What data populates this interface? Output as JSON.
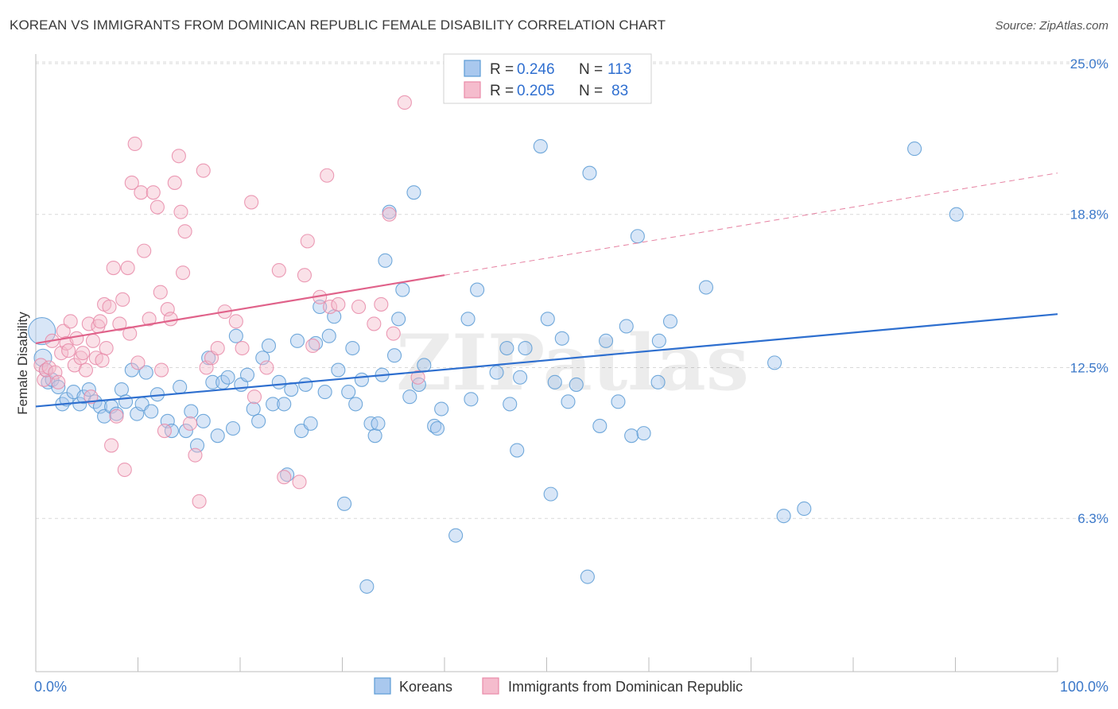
{
  "title": "KOREAN VS IMMIGRANTS FROM DOMINICAN REPUBLIC FEMALE DISABILITY CORRELATION CHART",
  "source": "Source: ZipAtlas.com",
  "watermark": "ZIPatlas",
  "legend_box": {
    "rows": [
      {
        "r_label": "R =",
        "r_value": "0.246",
        "n_label": "N =",
        "n_value": "113"
      },
      {
        "r_label": "R =",
        "r_value": "0.205",
        "n_label": "N =",
        "n_value": "83"
      }
    ]
  },
  "colors": {
    "korean": "#5b9bd5",
    "korean_fill": "#a9c8ee",
    "korean_line": "#2e6fcf",
    "dominican": "#e88aa8",
    "dominican_fill": "#f5bccd",
    "dominican_line": "#e0628a",
    "accent_text": "#3b78c9",
    "grid": "#d9d9d9"
  },
  "chart_data": {
    "type": "scatter",
    "title": "KOREAN VS IMMIGRANTS FROM DOMINICAN REPUBLIC FEMALE DISABILITY CORRELATION CHART",
    "xlabel": "",
    "ylabel": "Female Disability",
    "xlim": [
      0,
      100
    ],
    "ylim": [
      0,
      26
    ],
    "x_tick_labels": [
      "0.0%",
      "100.0%"
    ],
    "y_ticks": [
      6.3,
      12.5,
      18.8,
      25.0
    ],
    "y_tick_labels": [
      "6.3%",
      "12.5%",
      "18.8%",
      "25.0%"
    ],
    "grid": true,
    "legend_position": "bottom",
    "series": [
      {
        "name": "Koreans",
        "r": 0.246,
        "n": 113,
        "trend": {
          "x": [
            0,
            100
          ],
          "y": [
            10.9,
            14.7
          ]
        },
        "points": [
          [
            0.6,
            14.0
          ],
          [
            0.7,
            12.9
          ],
          [
            1.0,
            12.4
          ],
          [
            1.2,
            11.9
          ],
          [
            1.6,
            12.0
          ],
          [
            2.2,
            11.7
          ],
          [
            2.6,
            11.0
          ],
          [
            3.0,
            11.2
          ],
          [
            3.7,
            11.5
          ],
          [
            4.3,
            11.0
          ],
          [
            4.7,
            11.3
          ],
          [
            5.2,
            11.6
          ],
          [
            5.8,
            11.1
          ],
          [
            6.3,
            10.9
          ],
          [
            6.7,
            10.5
          ],
          [
            7.4,
            10.9
          ],
          [
            7.9,
            10.6
          ],
          [
            8.4,
            11.6
          ],
          [
            8.8,
            11.1
          ],
          [
            9.4,
            12.4
          ],
          [
            9.9,
            10.6
          ],
          [
            10.4,
            11.0
          ],
          [
            10.8,
            12.3
          ],
          [
            11.3,
            10.7
          ],
          [
            11.9,
            11.4
          ],
          [
            12.9,
            10.3
          ],
          [
            13.3,
            9.9
          ],
          [
            14.1,
            11.7
          ],
          [
            14.7,
            9.9
          ],
          [
            15.2,
            10.7
          ],
          [
            15.8,
            9.3
          ],
          [
            16.4,
            10.3
          ],
          [
            16.9,
            12.9
          ],
          [
            17.3,
            11.9
          ],
          [
            17.8,
            9.7
          ],
          [
            18.3,
            11.9
          ],
          [
            18.8,
            12.1
          ],
          [
            19.3,
            10.0
          ],
          [
            19.6,
            13.8
          ],
          [
            20.1,
            11.8
          ],
          [
            20.7,
            12.2
          ],
          [
            21.3,
            10.8
          ],
          [
            21.8,
            10.3
          ],
          [
            22.2,
            12.9
          ],
          [
            22.8,
            13.4
          ],
          [
            23.2,
            11.0
          ],
          [
            23.8,
            11.9
          ],
          [
            24.3,
            11.0
          ],
          [
            24.6,
            8.1
          ],
          [
            25.0,
            11.6
          ],
          [
            25.6,
            13.6
          ],
          [
            26.0,
            9.9
          ],
          [
            26.4,
            11.8
          ],
          [
            26.9,
            10.2
          ],
          [
            27.4,
            13.5
          ],
          [
            27.8,
            15.0
          ],
          [
            28.3,
            11.5
          ],
          [
            28.7,
            13.8
          ],
          [
            29.2,
            14.6
          ],
          [
            29.6,
            12.4
          ],
          [
            30.2,
            6.9
          ],
          [
            30.6,
            11.5
          ],
          [
            31.0,
            13.3
          ],
          [
            31.3,
            11.0
          ],
          [
            31.9,
            12.0
          ],
          [
            32.4,
            3.5
          ],
          [
            32.8,
            10.2
          ],
          [
            33.2,
            9.7
          ],
          [
            33.5,
            10.2
          ],
          [
            33.9,
            12.2
          ],
          [
            34.2,
            16.9
          ],
          [
            34.6,
            18.9
          ],
          [
            35.1,
            13.0
          ],
          [
            35.5,
            14.5
          ],
          [
            35.9,
            15.7
          ],
          [
            36.6,
            11.3
          ],
          [
            37.0,
            19.7
          ],
          [
            37.5,
            11.8
          ],
          [
            38.0,
            12.6
          ],
          [
            39.0,
            10.1
          ],
          [
            39.3,
            10.0
          ],
          [
            39.7,
            10.8
          ],
          [
            41.1,
            5.6
          ],
          [
            42.3,
            14.5
          ],
          [
            42.6,
            11.2
          ],
          [
            43.2,
            15.7
          ],
          [
            45.1,
            12.3
          ],
          [
            46.1,
            13.3
          ],
          [
            46.4,
            11.0
          ],
          [
            47.1,
            9.1
          ],
          [
            47.4,
            12.1
          ],
          [
            47.9,
            13.3
          ],
          [
            49.4,
            21.6
          ],
          [
            50.1,
            14.5
          ],
          [
            50.4,
            7.3
          ],
          [
            50.8,
            11.9
          ],
          [
            51.5,
            13.7
          ],
          [
            52.1,
            11.1
          ],
          [
            52.9,
            11.8
          ],
          [
            54.0,
            3.9
          ],
          [
            54.2,
            20.5
          ],
          [
            55.2,
            10.1
          ],
          [
            55.8,
            13.6
          ],
          [
            57.0,
            11.1
          ],
          [
            57.8,
            14.2
          ],
          [
            58.3,
            9.7
          ],
          [
            58.9,
            17.9
          ],
          [
            59.5,
            9.8
          ],
          [
            60.9,
            11.9
          ],
          [
            62.1,
            14.4
          ],
          [
            65.6,
            15.8
          ],
          [
            72.3,
            12.7
          ],
          [
            73.2,
            6.4
          ],
          [
            75.2,
            6.7
          ],
          [
            86.0,
            21.5
          ],
          [
            90.1,
            18.8
          ],
          [
            61.0,
            13.6
          ]
        ]
      },
      {
        "name": "Immigrants from Dominican Republic",
        "r": 0.205,
        "n": 83,
        "trend_solid": {
          "x": [
            0,
            40
          ],
          "y": [
            13.5,
            16.3
          ]
        },
        "trend_dashed": {
          "x": [
            40,
            100
          ],
          "y": [
            16.3,
            20.5
          ]
        },
        "points": [
          [
            0.5,
            12.6
          ],
          [
            0.8,
            12.0
          ],
          [
            1.0,
            12.4
          ],
          [
            1.3,
            12.5
          ],
          [
            1.6,
            13.6
          ],
          [
            1.9,
            12.3
          ],
          [
            2.2,
            11.9
          ],
          [
            2.5,
            13.1
          ],
          [
            2.7,
            14.0
          ],
          [
            3.0,
            13.5
          ],
          [
            3.2,
            13.2
          ],
          [
            3.4,
            14.4
          ],
          [
            3.8,
            12.6
          ],
          [
            4.0,
            13.7
          ],
          [
            4.4,
            12.9
          ],
          [
            4.6,
            13.1
          ],
          [
            4.9,
            12.4
          ],
          [
            5.2,
            14.3
          ],
          [
            5.4,
            11.3
          ],
          [
            5.6,
            13.6
          ],
          [
            5.9,
            12.9
          ],
          [
            6.1,
            14.2
          ],
          [
            6.3,
            14.4
          ],
          [
            6.5,
            12.8
          ],
          [
            6.7,
            15.1
          ],
          [
            6.9,
            13.3
          ],
          [
            7.2,
            15.0
          ],
          [
            7.4,
            9.3
          ],
          [
            7.6,
            16.6
          ],
          [
            7.9,
            10.5
          ],
          [
            8.2,
            14.3
          ],
          [
            8.5,
            15.3
          ],
          [
            8.7,
            8.3
          ],
          [
            9.0,
            16.6
          ],
          [
            9.2,
            13.9
          ],
          [
            9.4,
            20.1
          ],
          [
            9.7,
            21.7
          ],
          [
            10.0,
            12.7
          ],
          [
            10.3,
            19.7
          ],
          [
            10.6,
            17.3
          ],
          [
            11.1,
            14.5
          ],
          [
            11.5,
            19.7
          ],
          [
            11.9,
            19.1
          ],
          [
            12.2,
            15.6
          ],
          [
            12.6,
            9.9
          ],
          [
            12.9,
            14.9
          ],
          [
            13.2,
            14.5
          ],
          [
            13.6,
            20.1
          ],
          [
            14.0,
            21.2
          ],
          [
            14.2,
            18.9
          ],
          [
            14.4,
            16.4
          ],
          [
            14.6,
            18.1
          ],
          [
            15.1,
            10.2
          ],
          [
            15.6,
            8.9
          ],
          [
            16.0,
            7.0
          ],
          [
            16.4,
            20.6
          ],
          [
            16.7,
            12.5
          ],
          [
            17.2,
            12.9
          ],
          [
            17.8,
            13.3
          ],
          [
            18.5,
            14.8
          ],
          [
            19.6,
            14.4
          ],
          [
            20.2,
            13.3
          ],
          [
            21.1,
            19.3
          ],
          [
            21.4,
            11.3
          ],
          [
            22.6,
            12.5
          ],
          [
            23.8,
            16.5
          ],
          [
            24.3,
            8.0
          ],
          [
            25.8,
            7.8
          ],
          [
            26.3,
            16.3
          ],
          [
            26.6,
            17.7
          ],
          [
            27.1,
            13.4
          ],
          [
            27.8,
            15.4
          ],
          [
            28.5,
            20.4
          ],
          [
            28.8,
            15.0
          ],
          [
            29.6,
            15.1
          ],
          [
            31.6,
            15.0
          ],
          [
            33.1,
            14.3
          ],
          [
            33.8,
            15.1
          ],
          [
            34.6,
            18.8
          ],
          [
            35.0,
            13.9
          ],
          [
            36.1,
            23.4
          ],
          [
            37.4,
            12.1
          ],
          [
            12.3,
            12.4
          ]
        ]
      }
    ]
  },
  "bottom_legend": [
    {
      "label": "Koreans"
    },
    {
      "label": "Immigrants from Dominican Republic"
    }
  ]
}
